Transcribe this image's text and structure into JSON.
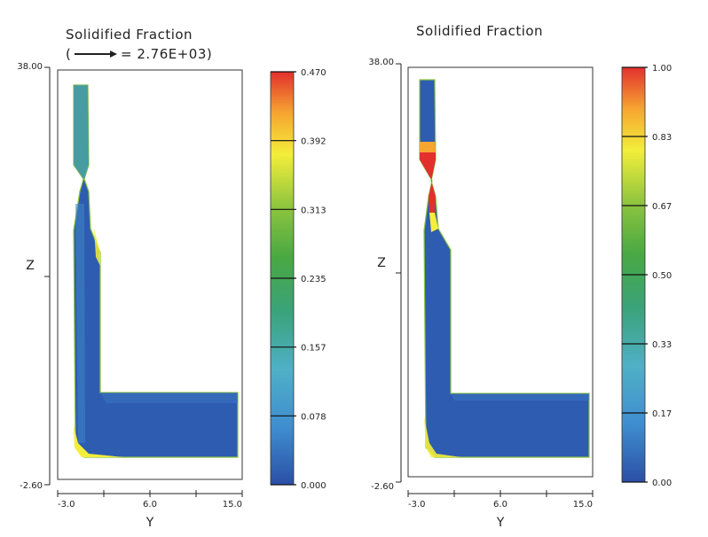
{
  "chart_data": [
    {
      "type": "heatmap",
      "title": "Solidified Fraction",
      "subtitle_value": "= 2.76E+03)",
      "subtitle_open": "(",
      "xlabel": "Y",
      "ylabel": "Z",
      "xlim": [
        -3.0,
        15.0
      ],
      "ylim": [
        -2.6,
        38.0
      ],
      "x_tick_labels": [
        "-3.0",
        "6.0",
        "15.0"
      ],
      "y_tick_labels": [
        "38.00",
        "-2.60"
      ],
      "colorbar": {
        "min": 0.0,
        "max": 0.47,
        "tick_labels": [
          "0.470",
          "0.392",
          "0.313",
          "0.235",
          "0.157",
          "0.078",
          "0.000"
        ]
      },
      "has_velocity_arrow": true
    },
    {
      "type": "heatmap",
      "title": "Solidified Fraction",
      "xlabel": "Y",
      "ylabel": "Z",
      "xlim": [
        -3.0,
        15.0
      ],
      "ylim": [
        -2.6,
        38.0
      ],
      "x_tick_labels": [
        "-3.0",
        "6.0",
        "15.0"
      ],
      "y_tick_labels": [
        "38.00",
        "-2.60"
      ],
      "colorbar": {
        "min": 0.0,
        "max": 1.0,
        "tick_labels": [
          "1.00",
          "0.83",
          "0.67",
          "0.50",
          "0.33",
          "0.17",
          "0.00"
        ]
      },
      "has_velocity_arrow": false
    }
  ],
  "colors": {
    "cmap": [
      "#2b4fa6",
      "#3f8ed0",
      "#4fb0c6",
      "#3aa37a",
      "#49a843",
      "#8cc43e",
      "#f3ee3a",
      "#f6a531",
      "#e2302d"
    ],
    "mold_blue": "#2e5cb0",
    "mold_edge": "#3a7ec4"
  }
}
